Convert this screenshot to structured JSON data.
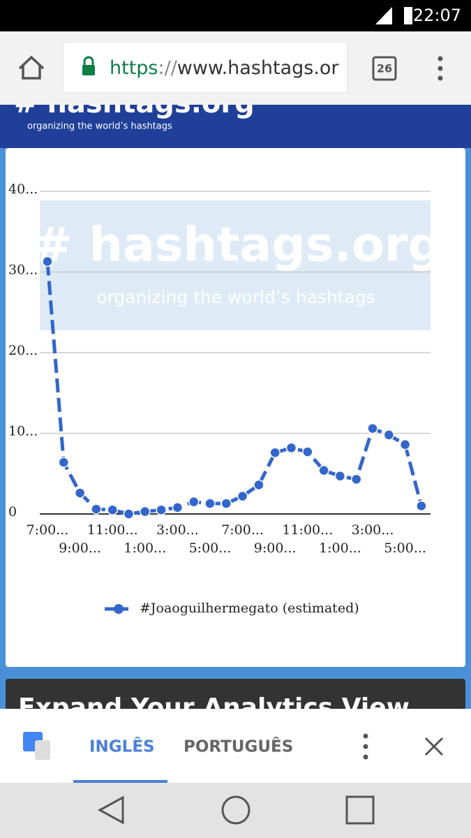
{
  "status_bar": {
    "time": "22:07"
  },
  "browser": {
    "url_scheme": "https",
    "url_separator": "://",
    "url_host": "www.hashtags.or",
    "tab_count": "26"
  },
  "site_header": {
    "logo": "# hashtags.org",
    "tagline": "organizing the world’s hashtags"
  },
  "watermark": {
    "logo": "# hashtags.org",
    "tagline": "organizing the world’s hashtags"
  },
  "chart_data": {
    "type": "line",
    "categories": [
      "7:00...",
      null,
      "9:00...",
      null,
      "11:00...",
      null,
      "1:00...",
      null,
      "3:00...",
      null,
      "5:00...",
      null,
      "7:00...",
      null,
      "9:00...",
      null,
      "11:00...",
      null,
      "1:00...",
      null,
      "3:00...",
      null,
      "5:00...",
      null
    ],
    "series": [
      {
        "name": "#Joaoguilhermegato (estimated)",
        "color": "#3366cc",
        "values": [
          31.3,
          6.4,
          2.6,
          0.6,
          0.5,
          0,
          0.3,
          0.5,
          0.8,
          1.5,
          1.3,
          1.3,
          2.2,
          3.6,
          7.6,
          8.2,
          7.7,
          5.4,
          4.7,
          4.3,
          10.6,
          9.8,
          8.6,
          1.0
        ]
      }
    ],
    "ylim": [
      0,
      40
    ],
    "yticks": [
      0,
      {
        "value": 10,
        "label": "10..."
      },
      {
        "value": 20,
        "label": "20..."
      },
      {
        "value": 30,
        "label": "30..."
      },
      {
        "value": 40,
        "label": "40..."
      }
    ],
    "grid": true,
    "legend": "bottom"
  },
  "next_section": {
    "heading": "Expand Your Analytics View"
  },
  "translate_bar": {
    "languages": [
      "INGLÊS",
      "PORTUGUÊS"
    ]
  }
}
